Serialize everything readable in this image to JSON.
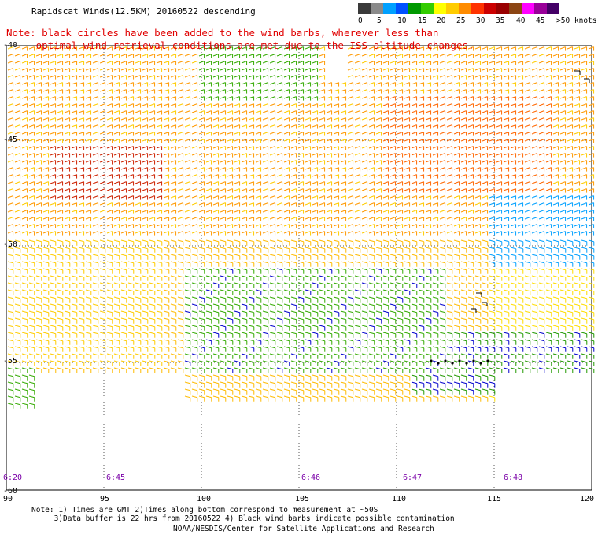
{
  "title": "Rapidscat Winds(12.5KM) 20160522  descending",
  "note": "Note: black circles have been added to the wind barbs, wherever less than\n     optimal wind retrieval conditions are met due to the ISS altitude changes.",
  "scale": {
    "colors": [
      "#3a3a3a",
      "#8a8a8a",
      "#00a0ff",
      "#0050ff",
      "#009900",
      "#33cc00",
      "#ffff00",
      "#ffcc00",
      "#ff8c00",
      "#ff3300",
      "#cc0000",
      "#990000",
      "#8b4513",
      "#ff00ff",
      "#990099",
      "#440066"
    ],
    "labels": [
      "0",
      "5",
      "10",
      "15",
      "20",
      "25",
      "30",
      "35",
      "40",
      "45",
      ">50 knots"
    ]
  },
  "lat_labels": [
    "-40",
    "-45",
    "-50",
    "-55",
    "-60"
  ],
  "lon_labels": [
    "90",
    "95",
    "100",
    "105",
    "110",
    "115",
    "120"
  ],
  "time_labels": [
    "6:20",
    "6:45",
    "6:46",
    "6:47",
    "6:48"
  ],
  "footnote": "Note: 1) Times are GMT 2)Times along bottom correspond to measurement at ~50S\n     3)Data buffer is 22 hrs from 20160522 4) Black wind barbs indicate possible contamination",
  "credit": "NOAA/NESDIS/Center for Satellite Applications and Research"
}
